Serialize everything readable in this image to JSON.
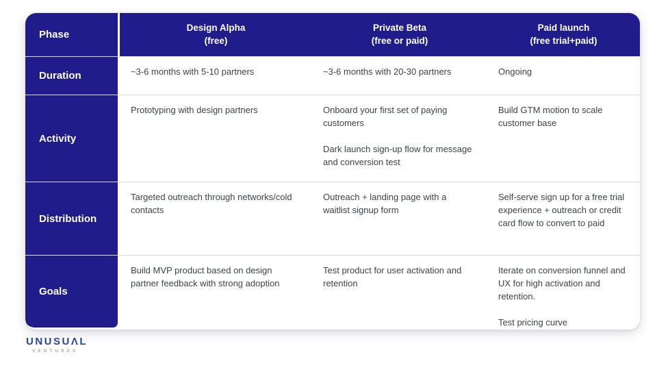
{
  "colors": {
    "brand_blue": "#211C8B",
    "logo_blue": "#2843A8",
    "separator": "#d9d9d9",
    "body_text": "#3e4347"
  },
  "table": {
    "corner_label": "Phase",
    "columns": [
      {
        "title": "Design Alpha",
        "subtitle": "(free)"
      },
      {
        "title": "Private Beta",
        "subtitle": "(free or paid)"
      },
      {
        "title": "Paid launch",
        "subtitle": "(free trial+paid)"
      }
    ],
    "rows": [
      {
        "label": "Duration",
        "cells": [
          [
            "~3-6 months with 5-10 partners"
          ],
          [
            "~3-6 months with 20-30 partners"
          ],
          [
            "Ongoing"
          ]
        ]
      },
      {
        "label": "Activity",
        "cells": [
          [
            "Prototyping with design partners"
          ],
          [
            "Onboard your first set of paying customers",
            "Dark launch sign-up flow for message and conversion test"
          ],
          [
            "Build GTM motion to scale customer base"
          ]
        ]
      },
      {
        "label": "Distribution",
        "cells": [
          [
            "Targeted outreach through networks/cold contacts"
          ],
          [
            "Outreach + landing page with a waitlist signup form"
          ],
          [
            "Self-serve sign up for a free trial experience + outreach or credit card flow to convert to paid"
          ]
        ]
      },
      {
        "label": "Goals",
        "cells": [
          [
            "Build MVP product based on design partner feedback with strong adoption"
          ],
          [
            "Test product for user activation and retention"
          ],
          [
            "Iterate on conversion funnel and UX for high activation and retention.",
            "Test pricing curve"
          ]
        ]
      }
    ]
  },
  "logo": {
    "wordmark": "UNUSUΛL",
    "subtext": "VENTURES"
  }
}
